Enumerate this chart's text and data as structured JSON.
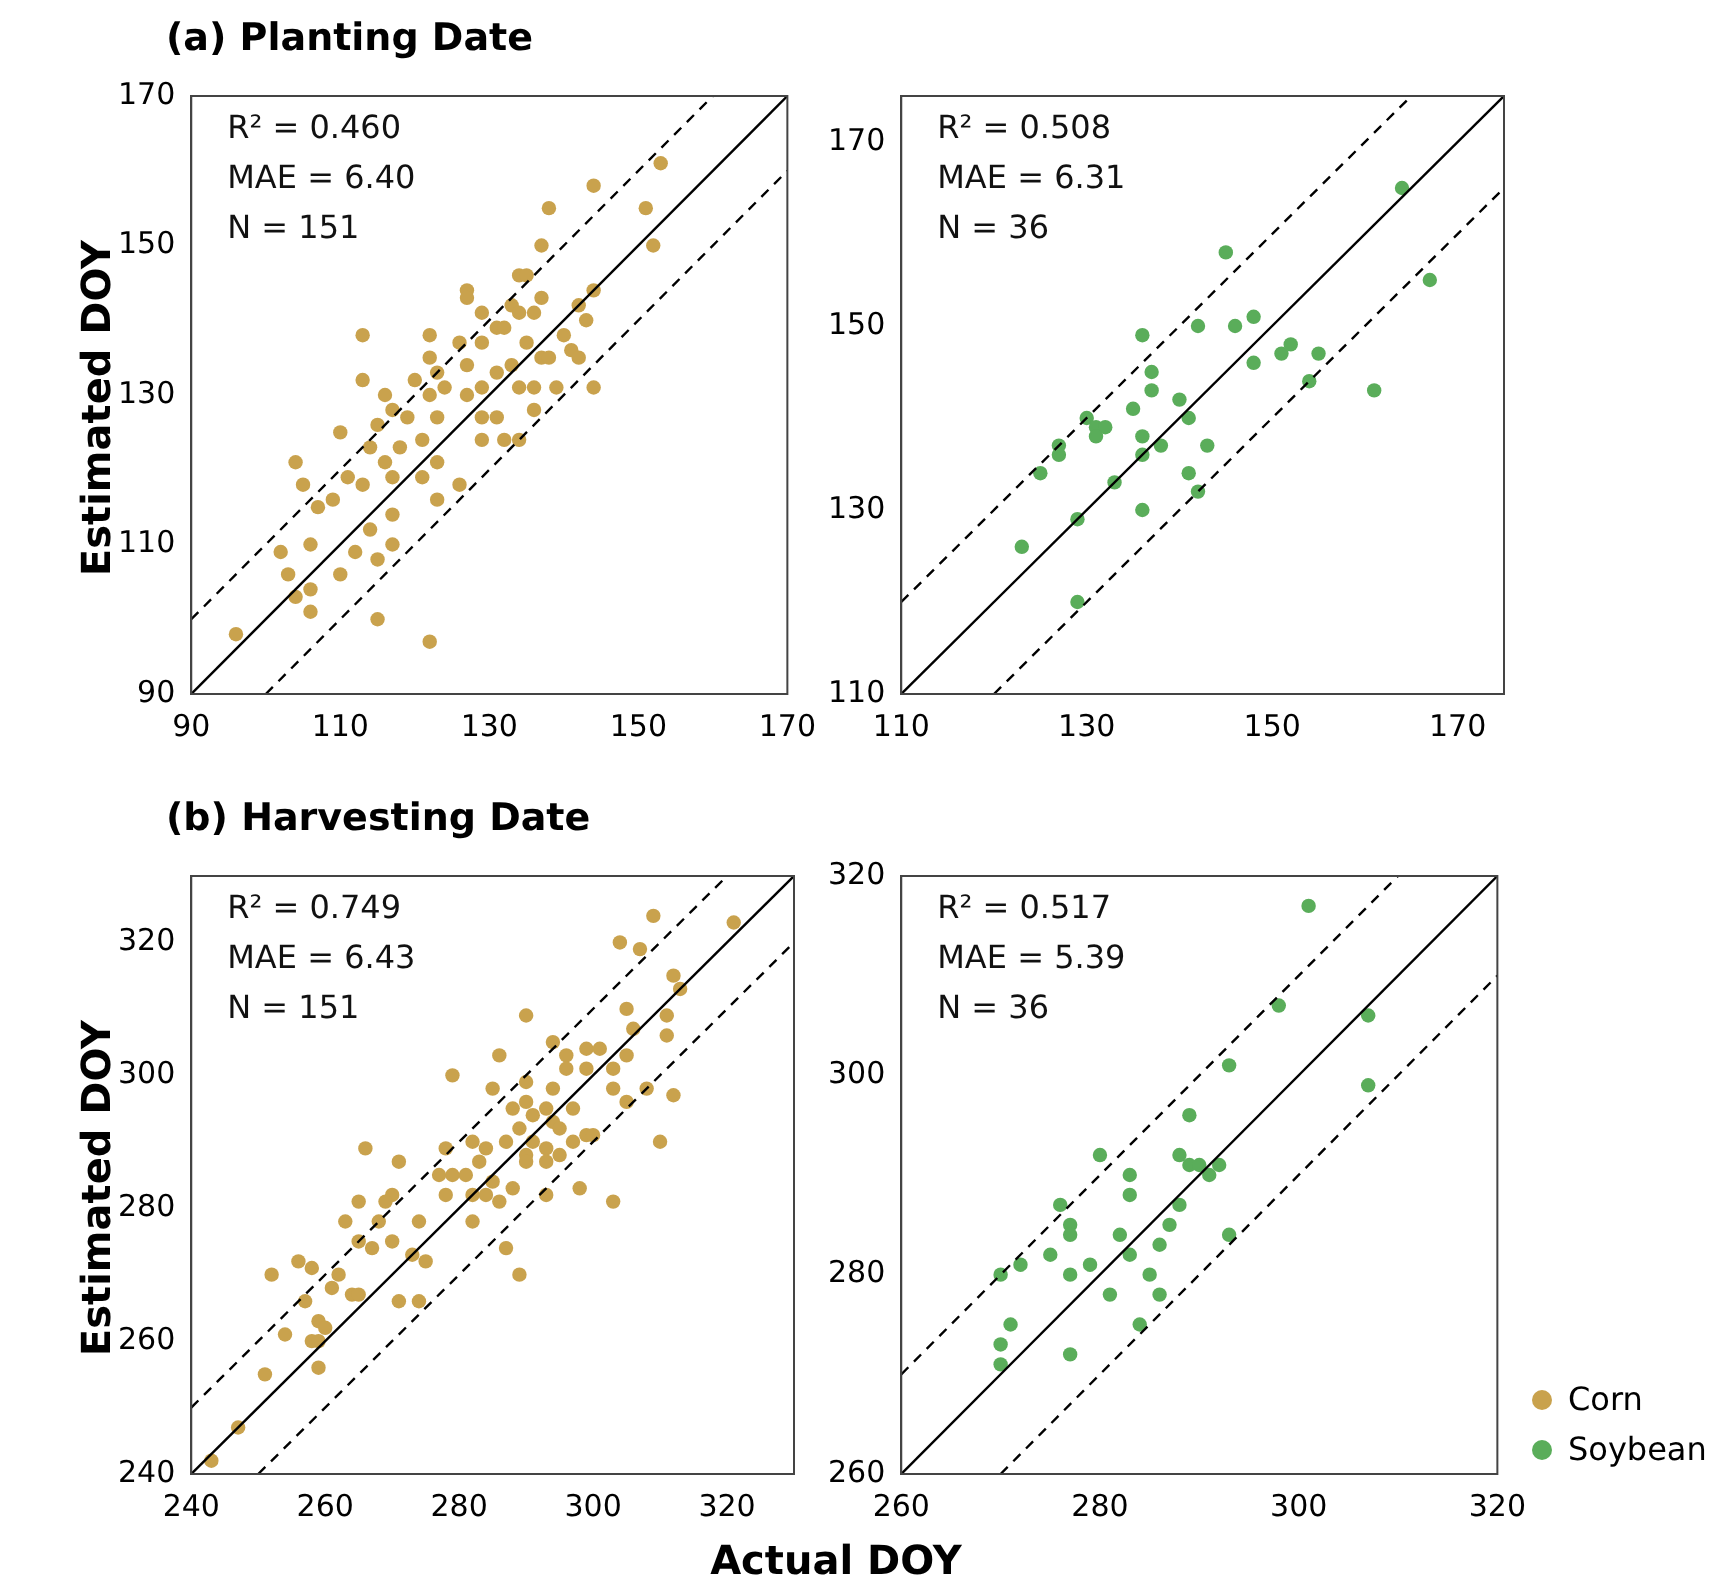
{
  "chart_data": [
    {
      "type": "scatter",
      "title": "(a) Planting Date",
      "ylabel": "Estimated DOY",
      "xlim": [
        90,
        170
      ],
      "ylim": [
        90,
        170
      ],
      "xticks": [
        90,
        110,
        130,
        150,
        170
      ],
      "yticks": [
        90,
        110,
        130,
        150,
        170
      ],
      "annotations": [
        "R² = 0.460",
        "MAE = 6.40",
        "N = 151"
      ],
      "series": [
        {
          "color": "#c9a24d",
          "marker": "circle",
          "x": [
            153,
            144,
            151,
            138,
            152,
            137,
            134,
            135,
            127,
            127,
            144,
            142,
            133,
            137,
            129,
            134,
            136,
            143,
            131,
            132,
            113,
            122,
            140,
            126,
            129,
            135,
            141,
            142,
            122,
            137,
            138,
            127,
            133,
            131,
            123,
            120,
            113,
            144,
            139,
            134,
            136,
            129,
            124,
            127,
            122,
            116,
            136,
            129,
            131,
            117,
            119,
            123,
            115,
            110,
            114,
            118,
            121,
            129,
            132,
            134,
            104,
            116,
            123,
            105,
            111,
            113,
            117,
            121,
            126,
            107,
            109,
            117,
            123,
            114,
            102,
            106,
            112,
            115,
            117,
            103,
            110,
            104,
            106,
            106,
            115,
            96,
            122
          ],
          "values": [
            161,
            158,
            155,
            155,
            150,
            150,
            146,
            146,
            144,
            143,
            144,
            142,
            142,
            143,
            141,
            141,
            141,
            140,
            139,
            139,
            138,
            138,
            138,
            137,
            137,
            137,
            136,
            135,
            135,
            135,
            135,
            134,
            134,
            133,
            133,
            132,
            132,
            131,
            131,
            131,
            131,
            131,
            131,
            130,
            130,
            130,
            128,
            127,
            127,
            128,
            127,
            127,
            126,
            125,
            123,
            123,
            124,
            124,
            124,
            124,
            121,
            121,
            121,
            118,
            119,
            118,
            119,
            119,
            118,
            115,
            116,
            114,
            116,
            112,
            109,
            110,
            109,
            108,
            110,
            106,
            106,
            103,
            104,
            101,
            100,
            98,
            97
          ]
        },
        {
          "type": "line",
          "color": "#000000",
          "line_style": "solid",
          "x": [
            90,
            170
          ],
          "values": [
            90,
            170
          ]
        },
        {
          "type": "line",
          "color": "#000000",
          "line_style": "dashed",
          "x": [
            90,
            160
          ],
          "values": [
            100,
            170
          ]
        },
        {
          "type": "line",
          "color": "#000000",
          "line_style": "dashed",
          "x": [
            100,
            170
          ],
          "values": [
            90,
            160
          ]
        }
      ]
    },
    {
      "type": "scatter",
      "xlim": [
        110,
        175
      ],
      "ylim": [
        110,
        175
      ],
      "xticks": [
        110,
        130,
        150,
        170
      ],
      "yticks": [
        110,
        130,
        150,
        170
      ],
      "annotations": [
        "R² = 0.508",
        "MAE = 6.31",
        "N = 36"
      ],
      "series": [
        {
          "color": "#5aad5a",
          "marker": "circle",
          "x": [
            164,
            167,
            145,
            136,
            142,
            146,
            148,
            148,
            151,
            152,
            155,
            154,
            161,
            137,
            137,
            140,
            135,
            141,
            130,
            131,
            132,
            131,
            136,
            127,
            138,
            143,
            127,
            136,
            125,
            133,
            141,
            142,
            136,
            129,
            123,
            129
          ],
          "values": [
            165,
            155,
            158,
            149,
            150,
            150,
            151,
            146,
            147,
            148,
            147,
            144,
            143,
            145,
            143,
            142,
            141,
            140,
            140,
            139,
            139,
            138,
            138,
            137,
            137,
            137,
            136,
            136,
            134,
            133,
            134,
            132,
            130,
            129,
            126,
            120
          ]
        },
        {
          "type": "line",
          "color": "#000000",
          "line_style": "solid",
          "x": [
            110,
            175
          ],
          "values": [
            110,
            175
          ]
        },
        {
          "type": "line",
          "color": "#000000",
          "line_style": "dashed",
          "x": [
            110,
            165
          ],
          "values": [
            120,
            175
          ]
        },
        {
          "type": "line",
          "color": "#000000",
          "line_style": "dashed",
          "x": [
            120,
            175
          ],
          "values": [
            110,
            165
          ]
        }
      ]
    },
    {
      "type": "scatter",
      "title": "(b) Harvesting Date",
      "ylabel": "Estimated DOY",
      "xlabel": "Actual DOY",
      "xlim": [
        240,
        330
      ],
      "ylim": [
        240,
        330
      ],
      "xticks": [
        240,
        260,
        280,
        300,
        320
      ],
      "yticks": [
        240,
        260,
        280,
        300,
        320
      ],
      "annotations": [
        "R² = 0.749",
        "MAE = 6.43",
        "N = 151"
      ],
      "series": [
        {
          "name": "Corn",
          "color": "#c9a24d",
          "marker": "circle",
          "x": [
            321,
            309,
            304,
            307,
            312,
            313,
            311,
            311,
            312,
            310,
            290,
            305,
            306,
            305,
            294,
            296,
            299,
            301,
            296,
            299,
            303,
            286,
            279,
            285,
            290,
            294,
            303,
            308,
            290,
            293,
            297,
            305,
            288,
            291,
            294,
            289,
            295,
            299,
            300,
            297,
            287,
            291,
            282,
            278,
            284,
            266,
            293,
            290,
            295,
            283,
            271,
            290,
            293,
            277,
            279,
            281,
            285,
            288,
            298,
            282,
            284,
            293,
            303,
            270,
            265,
            269,
            278,
            263,
            268,
            274,
            282,
            286,
            265,
            267,
            270,
            275,
            273,
            287,
            289,
            256,
            258,
            252,
            262,
            257,
            261,
            264,
            265,
            271,
            274,
            259,
            260,
            254,
            258,
            259,
            259,
            251,
            247,
            243
          ],
          "values": [
            323,
            324,
            320,
            319,
            315,
            313,
            309,
            306,
            297,
            290,
            309,
            310,
            307,
            303,
            305,
            303,
            304,
            304,
            301,
            301,
            301,
            303,
            300,
            298,
            299,
            298,
            298,
            298,
            296,
            295,
            295,
            296,
            295,
            294,
            293,
            292,
            292,
            291,
            291,
            290,
            290,
            290,
            290,
            289,
            289,
            289,
            289,
            288,
            288,
            287,
            287,
            287,
            287,
            285,
            285,
            285,
            284,
            283,
            283,
            282,
            282,
            282,
            281,
            282,
            281,
            281,
            282,
            278,
            278,
            278,
            278,
            281,
            275,
            274,
            275,
            272,
            273,
            274,
            270,
            272,
            271,
            270,
            270,
            266,
            268,
            267,
            267,
            266,
            266,
            263,
            262,
            261,
            260,
            260,
            256,
            255,
            247,
            242
          ]
        },
        {
          "type": "line",
          "color": "#000000",
          "line_style": "solid",
          "x": [
            240,
            330
          ],
          "values": [
            240,
            330
          ]
        },
        {
          "type": "line",
          "color": "#000000",
          "line_style": "dashed",
          "x": [
            240,
            320
          ],
          "values": [
            250,
            330
          ]
        },
        {
          "type": "line",
          "color": "#000000",
          "line_style": "dashed",
          "x": [
            250,
            330
          ],
          "values": [
            240,
            320
          ]
        }
      ]
    },
    {
      "type": "scatter",
      "xlim": [
        260,
        320
      ],
      "ylim": [
        260,
        320
      ],
      "xticks": [
        260,
        280,
        300,
        320
      ],
      "yticks": [
        260,
        280,
        300,
        320
      ],
      "legend": "right",
      "annotations": [
        "R² = 0.517",
        "MAE = 5.39",
        "N = 36"
      ],
      "series": [
        {
          "name": "Soybean",
          "color": "#5aad5a",
          "marker": "circle",
          "x": [
            301,
            298,
            307,
            307,
            293,
            289,
            280,
            288,
            289,
            290,
            291,
            283,
            283,
            276,
            288,
            277,
            277,
            287,
            282,
            293,
            286,
            275,
            283,
            272,
            279,
            270,
            277,
            285,
            281,
            286,
            271,
            284,
            270,
            277,
            270,
            292
          ],
          "values": [
            317,
            307,
            306,
            299,
            301,
            296,
            292,
            292,
            291,
            291,
            290,
            290,
            288,
            287,
            287,
            285,
            284,
            285,
            284,
            284,
            283,
            282,
            282,
            281,
            281,
            280,
            280,
            280,
            278,
            278,
            275,
            275,
            273,
            272,
            271,
            291
          ]
        },
        {
          "type": "line",
          "color": "#000000",
          "line_style": "solid",
          "x": [
            260,
            320
          ],
          "values": [
            260,
            320
          ]
        },
        {
          "type": "line",
          "color": "#000000",
          "line_style": "dashed",
          "x": [
            260,
            310
          ],
          "values": [
            270,
            320
          ]
        },
        {
          "type": "line",
          "color": "#000000",
          "line_style": "dashed",
          "x": [
            270,
            320
          ],
          "values": [
            260,
            310
          ]
        }
      ]
    }
  ]
}
